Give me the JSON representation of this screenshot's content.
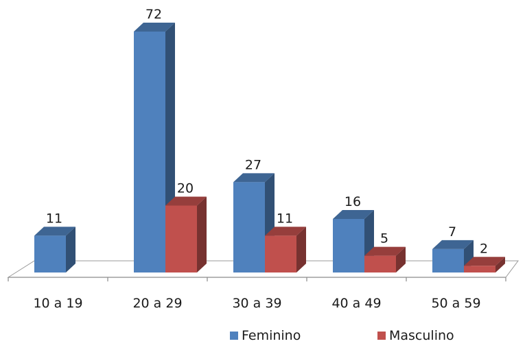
{
  "chart_data": {
    "type": "bar",
    "variant": "3d-clustered-column",
    "title": "",
    "xlabel": "",
    "ylabel": "",
    "categories": [
      "10 a 19",
      "20 a 29",
      "30 a 39",
      "40 a 49",
      "50 a 59"
    ],
    "series": [
      {
        "name": "Feminino",
        "values": [
          11,
          72,
          27,
          16,
          7
        ],
        "color": "#4f81bd"
      },
      {
        "name": "Masculino",
        "values": [
          0,
          20,
          11,
          5,
          2
        ],
        "color": "#c0504d"
      }
    ],
    "data_labels": [
      [
        "11",
        "72",
        "27",
        "16",
        "7"
      ],
      [
        "",
        "20",
        "11",
        "5",
        "2"
      ]
    ],
    "ylim": [
      0,
      72
    ],
    "grid": false,
    "legend_position": "bottom"
  }
}
